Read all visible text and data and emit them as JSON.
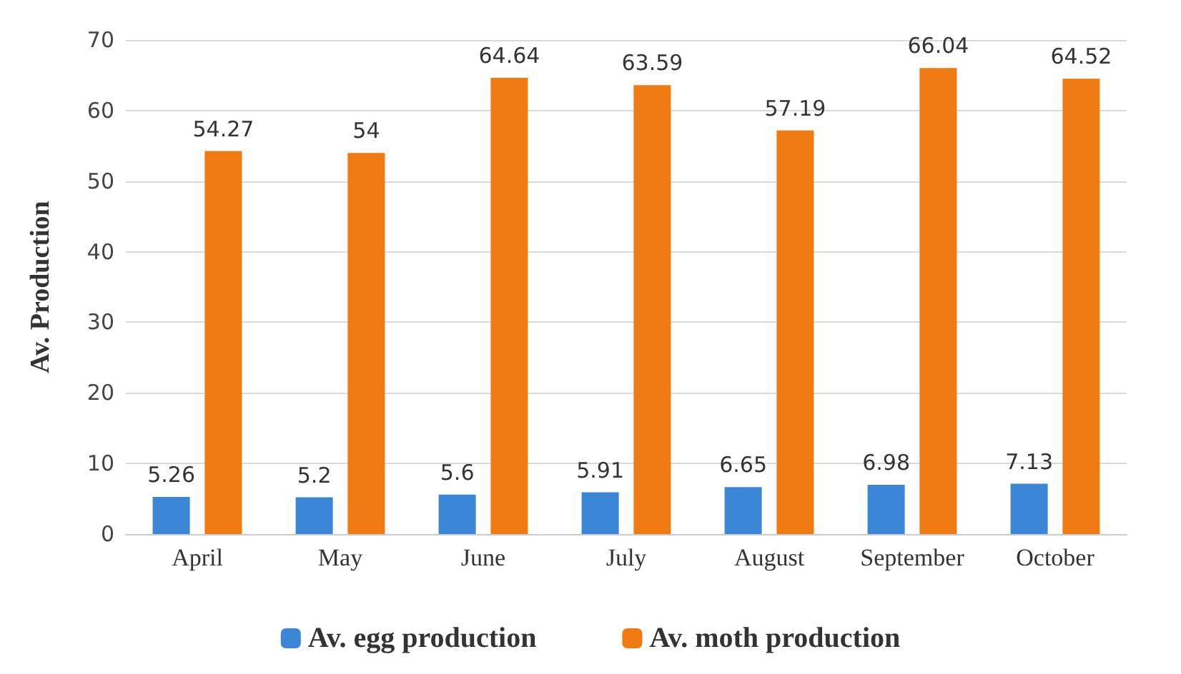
{
  "chart_data": {
    "type": "bar",
    "ylabel": "Av. Production",
    "categories": [
      "April",
      "May",
      "June",
      "July",
      "August",
      "September",
      "October"
    ],
    "series": [
      {
        "name": "Av. egg production",
        "color": "#3b86d6",
        "values": [
          5.26,
          5.2,
          5.6,
          5.91,
          6.65,
          6.98,
          7.13
        ]
      },
      {
        "name": "Av. moth production",
        "color": "#f07a12",
        "values": [
          54.27,
          54,
          64.64,
          63.59,
          57.19,
          66.04,
          64.52
        ]
      }
    ],
    "ylim": [
      0,
      70
    ],
    "yticks": [
      0,
      10,
      20,
      30,
      40,
      50,
      60,
      70
    ],
    "grid": "y",
    "legend": "bottom",
    "data_labels": true
  }
}
